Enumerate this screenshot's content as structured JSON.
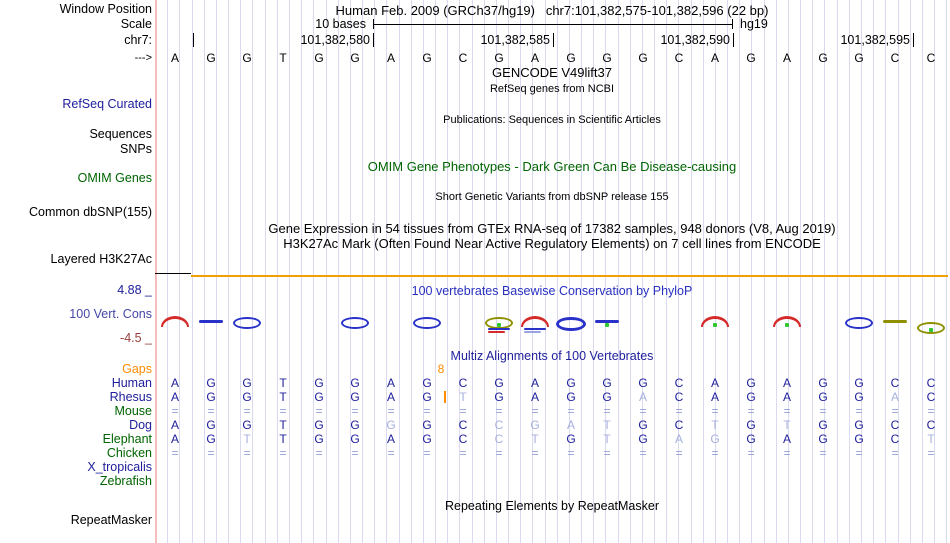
{
  "palette": {
    "navy": "#20209c",
    "green": "#006400",
    "orange": "#ff8c00",
    "faded_letter": "#a6b0dc",
    "grid": "#d9d9f0",
    "pink_guide": "#f7bcbc",
    "h3k27ac_orange": "#f0a000",
    "cons_red": "#d42a2a",
    "cons_blue": "#2832c8",
    "cons_olive": "#8f9000",
    "cons_dot_green": "#2fc82f",
    "maroon": "#994040"
  },
  "header": {
    "title": "Human Feb. 2009 (GRCh37/hg19)   chr7:101,382,575-101,382,596 (22 bp)",
    "window_position_label": "Window Position",
    "scale_label": "Scale",
    "scale_text": "10 bases",
    "assembly": "hg19",
    "chrom_label": "chr7:",
    "strand_label": "--->",
    "ruler_ticks": [
      {
        "col": 1,
        "label": ""
      },
      {
        "col": 6,
        "label": "101,382,580"
      },
      {
        "col": 11,
        "label": "101,382,585"
      },
      {
        "col": 16,
        "label": "101,382,590"
      },
      {
        "col": 21,
        "label": "101,382,595"
      }
    ]
  },
  "sequence": "AGGTGGAGCGAGGGCAGAGGCC",
  "track_labels": {
    "refseq_curated": "RefSeq Curated",
    "sequences": "Sequences",
    "snps": "SNPs",
    "omim_genes": "OMIM Genes",
    "common_dbsnp": "Common dbSNP(155)",
    "layered_h3k27ac": "Layered H3K27Ac",
    "cons_max": "4.88 _",
    "cons_label": "100 Vert. Cons",
    "cons_min": "-4.5 _",
    "repeatmasker": "RepeatMasker"
  },
  "messages": {
    "gencode": "GENCODE V49lift37",
    "refseq_ncbi": "RefSeq genes from NCBI",
    "publications": "Publications: Sequences in Scientific Articles",
    "omim": "OMIM Gene Phenotypes - Dark Green Can Be Disease-causing",
    "dbsnp": "Short Genetic Variants from dbSNP release 155",
    "gtex": "Gene Expression in 54 tissues from GTEx RNA-seq of 17382 samples, 948 donors (V8, Aug 2019)",
    "h3k27ac": "H3K27Ac Mark (Often Found Near Active Regulatory Elements) on 7 cell lines from ENCODE",
    "conservation": "100 vertebrates Basewise Conservation by PhyloP",
    "multiz": "Multiz Alignments of 100 Vertebrates",
    "repeats": "Repeating Elements by RepeatMasker"
  },
  "alignment": {
    "gaps_label": "Gaps",
    "lowercase_is_faded": true,
    "insert": {
      "count": "8",
      "before_col": 9,
      "row": "Rhesus"
    },
    "rows": [
      {
        "name": "Human",
        "color": "navy",
        "seq": "AGGTGGAGCGAGGGCAGAGGCC"
      },
      {
        "name": "Rhesus",
        "color": "navy",
        "seq": "AGGTGGAGtGAGGaCAGAGGaC"
      },
      {
        "name": "Mouse",
        "color": "green",
        "seq": "======================"
      },
      {
        "name": "Dog",
        "color": "navy",
        "seq": "AGGTGGgGCcgatGCtGtGGCC"
      },
      {
        "name": "Elephant",
        "color": "green",
        "seq": "AGtTGGAGCctGtGagGAGGCt"
      },
      {
        "name": "Chicken",
        "color": "green",
        "seq": "======================"
      },
      {
        "name": "X_tropicalis",
        "color": "navy",
        "seq": ""
      },
      {
        "name": "Zebrafish",
        "color": "green",
        "seq": ""
      }
    ]
  },
  "conservation_marks": [
    {
      "col": 1,
      "type": "arch",
      "color": "red"
    },
    {
      "col": 2,
      "type": "dash",
      "color": "blue"
    },
    {
      "col": 3,
      "type": "ring",
      "color": "blue"
    },
    {
      "col": 6,
      "type": "ring",
      "color": "blue"
    },
    {
      "col": 8,
      "type": "ring",
      "color": "blue"
    },
    {
      "col": 10,
      "type": "ring",
      "color": "olive",
      "under": [
        "blue",
        "red"
      ],
      "dot": true
    },
    {
      "col": 11,
      "type": "arch",
      "color": "red",
      "under": [
        "blue",
        "lightblue"
      ]
    },
    {
      "col": 12,
      "type": "ring",
      "color": "blue",
      "bold": true
    },
    {
      "col": 13,
      "type": "dash",
      "color": "blue",
      "dot": true
    },
    {
      "col": 16,
      "type": "arch",
      "color": "red",
      "dot": true
    },
    {
      "col": 18,
      "type": "arch",
      "color": "red",
      "dot": true
    },
    {
      "col": 20,
      "type": "ring",
      "color": "blue"
    },
    {
      "col": 21,
      "type": "dash",
      "color": "olive"
    },
    {
      "col": 22,
      "type": "ring",
      "color": "olive",
      "dot": true,
      "low": true
    }
  ]
}
